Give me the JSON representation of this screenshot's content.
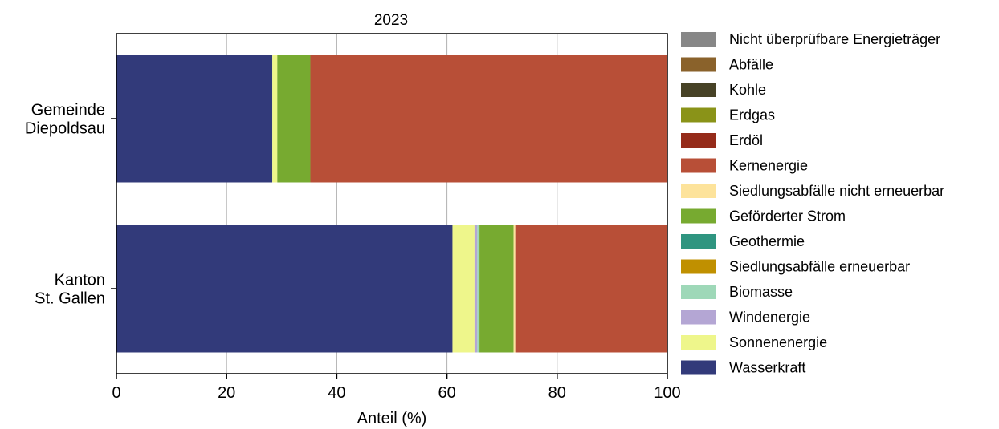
{
  "chart_data": {
    "type": "bar",
    "orientation": "horizontal",
    "stacked": true,
    "title": "2023",
    "xlabel": "Anteil (%)",
    "ylabel": "",
    "xlim": [
      0,
      100
    ],
    "x_ticks": [
      "0",
      "20",
      "40",
      "60",
      "80",
      "100"
    ],
    "grid": "vertical",
    "legend_position": "right",
    "categories": [
      [
        "Gemeinde",
        "Diepoldsau"
      ],
      [
        "Kanton",
        "St. Gallen"
      ]
    ],
    "series": [
      {
        "name": "Wasserkraft",
        "color": "#323a7a",
        "values": [
          28.3,
          61.0
        ]
      },
      {
        "name": "Sonnenenergie",
        "color": "#eef68b",
        "values": [
          0.9,
          4.0
        ]
      },
      {
        "name": "Windenergie",
        "color": "#b4a6d4",
        "values": [
          0.0,
          0.5
        ]
      },
      {
        "name": "Biomasse",
        "color": "#9ed8b8",
        "values": [
          0.0,
          0.4
        ]
      },
      {
        "name": "Siedlungsabfälle erneuerbar",
        "color": "#c09000",
        "values": [
          0.0,
          0.0
        ]
      },
      {
        "name": "Geothermie",
        "color": "#2f9580",
        "values": [
          0.0,
          0.0
        ]
      },
      {
        "name": "Geförderter Strom",
        "color": "#77aa30",
        "values": [
          6.0,
          6.2
        ]
      },
      {
        "name": "Siedlungsabfälle nicht erneuerbar",
        "color": "#fde39b",
        "values": [
          0.0,
          0.3
        ]
      },
      {
        "name": "Kernenergie",
        "color": "#b84f37",
        "values": [
          64.8,
          27.6
        ]
      },
      {
        "name": "Erdöl",
        "color": "#952b1a",
        "values": [
          0.0,
          0.0
        ]
      },
      {
        "name": "Erdgas",
        "color": "#8a9318",
        "values": [
          0.0,
          0.0
        ]
      },
      {
        "name": "Kohle",
        "color": "#474226",
        "values": [
          0.0,
          0.0
        ]
      },
      {
        "name": "Abfälle",
        "color": "#8a622b",
        "values": [
          0.0,
          0.0
        ]
      },
      {
        "name": "Nicht überprüfbare Energieträger",
        "color": "#878787",
        "values": [
          0.0,
          0.0
        ]
      }
    ],
    "legend_order": [
      "Nicht überprüfbare Energieträger",
      "Abfälle",
      "Kohle",
      "Erdgas",
      "Erdöl",
      "Kernenergie",
      "Siedlungsabfälle nicht erneuerbar",
      "Geförderter Strom",
      "Geothermie",
      "Siedlungsabfälle erneuerbar",
      "Biomasse",
      "Windenergie",
      "Sonnenenergie",
      "Wasserkraft"
    ]
  }
}
